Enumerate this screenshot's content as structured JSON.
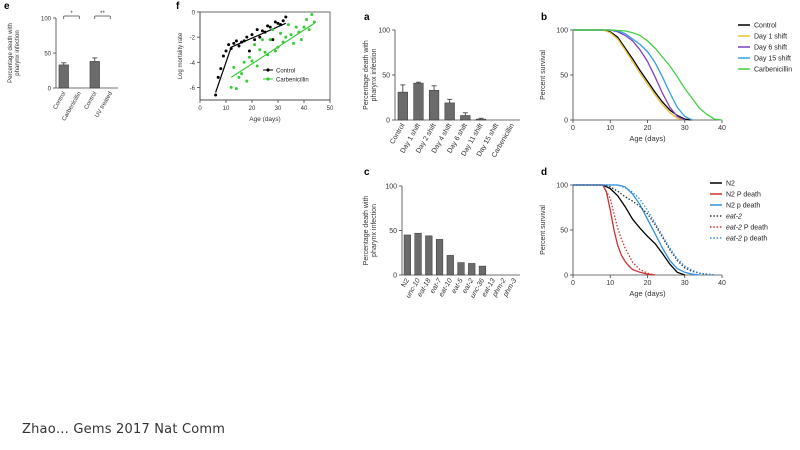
{
  "caption": "Zhao… Gems 2017 Nat Comm",
  "chart_data": [
    {
      "id": "e",
      "panel_label": "e",
      "type": "bar",
      "categories": [
        "Control",
        "Carbenicillin",
        "Control",
        "UV treated"
      ],
      "values": [
        33,
        0,
        38,
        0
      ],
      "errors": [
        3,
        0,
        5,
        0
      ],
      "ylabel": "Percentage death with pharynx infection",
      "ylim": [
        0,
        100
      ],
      "yticks": [
        0,
        50,
        100
      ],
      "significance": [
        {
          "from": 0,
          "to": 1,
          "label": "*"
        },
        {
          "from": 2,
          "to": 3,
          "label": "**"
        }
      ]
    },
    {
      "id": "f",
      "panel_label": "f",
      "type": "scatter",
      "xlabel": "Age (days)",
      "ylabel": "Log mortality rate",
      "xlim": [
        0,
        50
      ],
      "ylim": [
        -7,
        0
      ],
      "xticks": [
        0,
        10,
        20,
        30,
        40,
        50
      ],
      "yticks": [
        -6,
        -4,
        -2,
        0
      ],
      "legend_position": "bottom-right",
      "series": [
        {
          "name": "Control",
          "color": "#000000",
          "x": [
            6,
            7,
            8,
            9,
            10,
            11,
            12,
            13,
            14,
            15,
            16,
            17,
            18,
            19,
            20,
            21,
            22,
            23,
            24,
            25,
            26,
            27,
            28,
            29,
            30,
            31,
            32,
            33
          ],
          "y": [
            -6.6,
            -5.2,
            -4.5,
            -3.5,
            -3.1,
            -2.6,
            -2.9,
            -2.5,
            -2.3,
            -2.7,
            -2.4,
            -2.3,
            -2.0,
            -3.1,
            -1.8,
            -2.2,
            -1.4,
            -2.0,
            -1.5,
            -1.6,
            -1.1,
            -1.2,
            -2.2,
            -0.8,
            -0.9,
            -1.0,
            -0.7,
            -0.4
          ],
          "fit_x": [
            6,
            12,
            33
          ],
          "fit_y": [
            -6.4,
            -2.8,
            -0.9
          ]
        },
        {
          "name": "Carbenicillin",
          "color": "#33cc33",
          "x": [
            12,
            13,
            14,
            15,
            16,
            17,
            18,
            19,
            20,
            21,
            22,
            23,
            24,
            25,
            26,
            27,
            28,
            29,
            30,
            31,
            32,
            33,
            34,
            35,
            36,
            37,
            38,
            39,
            40,
            41,
            42,
            43,
            44
          ],
          "y": [
            -6.0,
            -4.4,
            -6.1,
            -5.2,
            -4.9,
            -4.0,
            -5.5,
            -3.6,
            -3.9,
            -2.6,
            -4.3,
            -3.0,
            -2.2,
            -3.2,
            -3.4,
            -2.2,
            -1.4,
            -3.1,
            -2.8,
            -1.7,
            -2.4,
            -2.0,
            -1.0,
            -1.8,
            -2.5,
            -1.2,
            -1.6,
            -2.2,
            -1.2,
            -0.6,
            -1.4,
            -0.2,
            -0.8
          ],
          "fit_x": [
            12,
            44
          ],
          "fit_y": [
            -5.2,
            -0.9
          ]
        }
      ]
    },
    {
      "id": "a",
      "panel_label": "a",
      "type": "bar",
      "categories": [
        "Control",
        "Day 1 shift",
        "Day 2 shift",
        "Day 4 shift",
        "Day 6 shift",
        "Day 11 shift",
        "Day 15 shift",
        "Carbenicillin"
      ],
      "values": [
        31,
        41,
        33,
        19,
        5,
        1,
        0,
        0
      ],
      "errors": [
        8,
        1,
        5,
        4,
        3,
        1,
        0,
        0
      ],
      "ylabel": "Percentage death with pharynx infection",
      "ylim": [
        0,
        100
      ],
      "yticks": [
        0,
        50,
        100
      ]
    },
    {
      "id": "b",
      "panel_label": "b",
      "type": "line",
      "xlabel": "Age (days)",
      "ylabel": "Percent survival",
      "xlim": [
        0,
        40
      ],
      "ylim": [
        0,
        100
      ],
      "xticks": [
        0,
        10,
        20,
        30,
        40
      ],
      "yticks": [
        0,
        50,
        100
      ],
      "legend_position": "right",
      "series": [
        {
          "name": "Control",
          "color": "#000000",
          "dash": "solid",
          "x": [
            0,
            8,
            10,
            12,
            14,
            16,
            18,
            20,
            22,
            24,
            26,
            28,
            30,
            32
          ],
          "y": [
            100,
            100,
            98,
            92,
            80,
            68,
            55,
            43,
            31,
            20,
            11,
            5,
            1,
            0
          ]
        },
        {
          "name": "Day 1 shift",
          "color": "#e8c030",
          "dash": "solid",
          "x": [
            0,
            8,
            10,
            12,
            14,
            16,
            18,
            20,
            22,
            24,
            26,
            28,
            30
          ],
          "y": [
            100,
            100,
            97,
            90,
            78,
            65,
            52,
            40,
            28,
            17,
            8,
            2,
            0
          ]
        },
        {
          "name": "Day 6 shift",
          "color": "#8040c0",
          "dash": "solid",
          "x": [
            0,
            10,
            12,
            14,
            16,
            18,
            20,
            22,
            24,
            26,
            28,
            30
          ],
          "y": [
            100,
            100,
            98,
            94,
            88,
            78,
            65,
            48,
            30,
            14,
            4,
            0
          ]
        },
        {
          "name": "Day 15 shift",
          "color": "#30a0e0",
          "dash": "solid",
          "x": [
            0,
            10,
            12,
            14,
            16,
            18,
            20,
            22,
            24,
            26,
            28,
            30,
            32
          ],
          "y": [
            100,
            100,
            99,
            96,
            90,
            84,
            76,
            64,
            48,
            30,
            14,
            4,
            0
          ]
        },
        {
          "name": "Carbenicillin",
          "color": "#40d040",
          "dash": "solid",
          "x": [
            0,
            10,
            14,
            16,
            18,
            20,
            22,
            24,
            26,
            28,
            30,
            32,
            34,
            36,
            38,
            40
          ],
          "y": [
            100,
            100,
            99,
            97,
            94,
            88,
            80,
            70,
            60,
            48,
            35,
            24,
            13,
            6,
            1,
            0
          ]
        }
      ]
    },
    {
      "id": "c",
      "panel_label": "c",
      "type": "bar",
      "categories": [
        "N2",
        "unc-10",
        "eat-18",
        "eat-7",
        "eat-10",
        "eat-5",
        "eat-2",
        "unc-36",
        "eat-13",
        "phm-2",
        "phm-3"
      ],
      "values": [
        45,
        47,
        44,
        40,
        22,
        14,
        13,
        10,
        0,
        0,
        0
      ],
      "ylabel": "Percentage death with pharynx infection",
      "ylim": [
        0,
        100
      ],
      "yticks": [
        0,
        50,
        100
      ]
    },
    {
      "id": "d",
      "panel_label": "d",
      "type": "line",
      "xlabel": "Age (days)",
      "ylabel": "Percent survival",
      "xlim": [
        0,
        40
      ],
      "ylim": [
        0,
        100
      ],
      "xticks": [
        0,
        10,
        20,
        30,
        40
      ],
      "yticks": [
        0,
        50,
        100
      ],
      "legend_position": "right",
      "series": [
        {
          "name": "N2",
          "color": "#000000",
          "dash": "solid",
          "x": [
            0,
            8,
            10,
            12,
            14,
            16,
            18,
            20,
            22,
            24,
            26,
            28,
            30
          ],
          "y": [
            100,
            100,
            96,
            88,
            76,
            62,
            52,
            43,
            35,
            24,
            12,
            3,
            0
          ]
        },
        {
          "name": "N2 P death",
          "color": "#d03030",
          "dash": "solid",
          "x": [
            0,
            8,
            9,
            10,
            11,
            12,
            13,
            14,
            15,
            16,
            18,
            20,
            22
          ],
          "y": [
            100,
            100,
            92,
            72,
            50,
            33,
            22,
            15,
            10,
            6,
            3,
            1,
            0
          ]
        },
        {
          "name": "N2 p death",
          "color": "#3090e0",
          "dash": "solid",
          "x": [
            0,
            12,
            14,
            16,
            18,
            20,
            22,
            24,
            26,
            28,
            30,
            32,
            34
          ],
          "y": [
            100,
            100,
            98,
            90,
            78,
            62,
            46,
            30,
            16,
            7,
            3,
            1,
            0
          ]
        },
        {
          "name": "eat-2",
          "color": "#333333",
          "dash": "dotted",
          "x": [
            0,
            8,
            10,
            12,
            14,
            16,
            18,
            20,
            22,
            24,
            26,
            28,
            30,
            32,
            34,
            36,
            38
          ],
          "y": [
            100,
            100,
            98,
            93,
            87,
            82,
            76,
            68,
            56,
            42,
            28,
            16,
            8,
            4,
            2,
            1,
            0
          ]
        },
        {
          "name": "eat-2 P death",
          "color": "#d03030",
          "dash": "dotted",
          "x": [
            0,
            8,
            10,
            11,
            12,
            13,
            14,
            15,
            16,
            18,
            20,
            22
          ],
          "y": [
            100,
            100,
            85,
            68,
            52,
            40,
            30,
            22,
            14,
            6,
            2,
            0
          ]
        },
        {
          "name": "eat-2 p death",
          "color": "#3090e0",
          "dash": "dotted",
          "x": [
            0,
            12,
            14,
            16,
            18,
            20,
            22,
            24,
            26,
            28,
            30,
            32,
            34,
            36,
            38
          ],
          "y": [
            100,
            100,
            97,
            92,
            84,
            72,
            58,
            44,
            30,
            18,
            10,
            5,
            2,
            1,
            0
          ]
        }
      ]
    }
  ]
}
